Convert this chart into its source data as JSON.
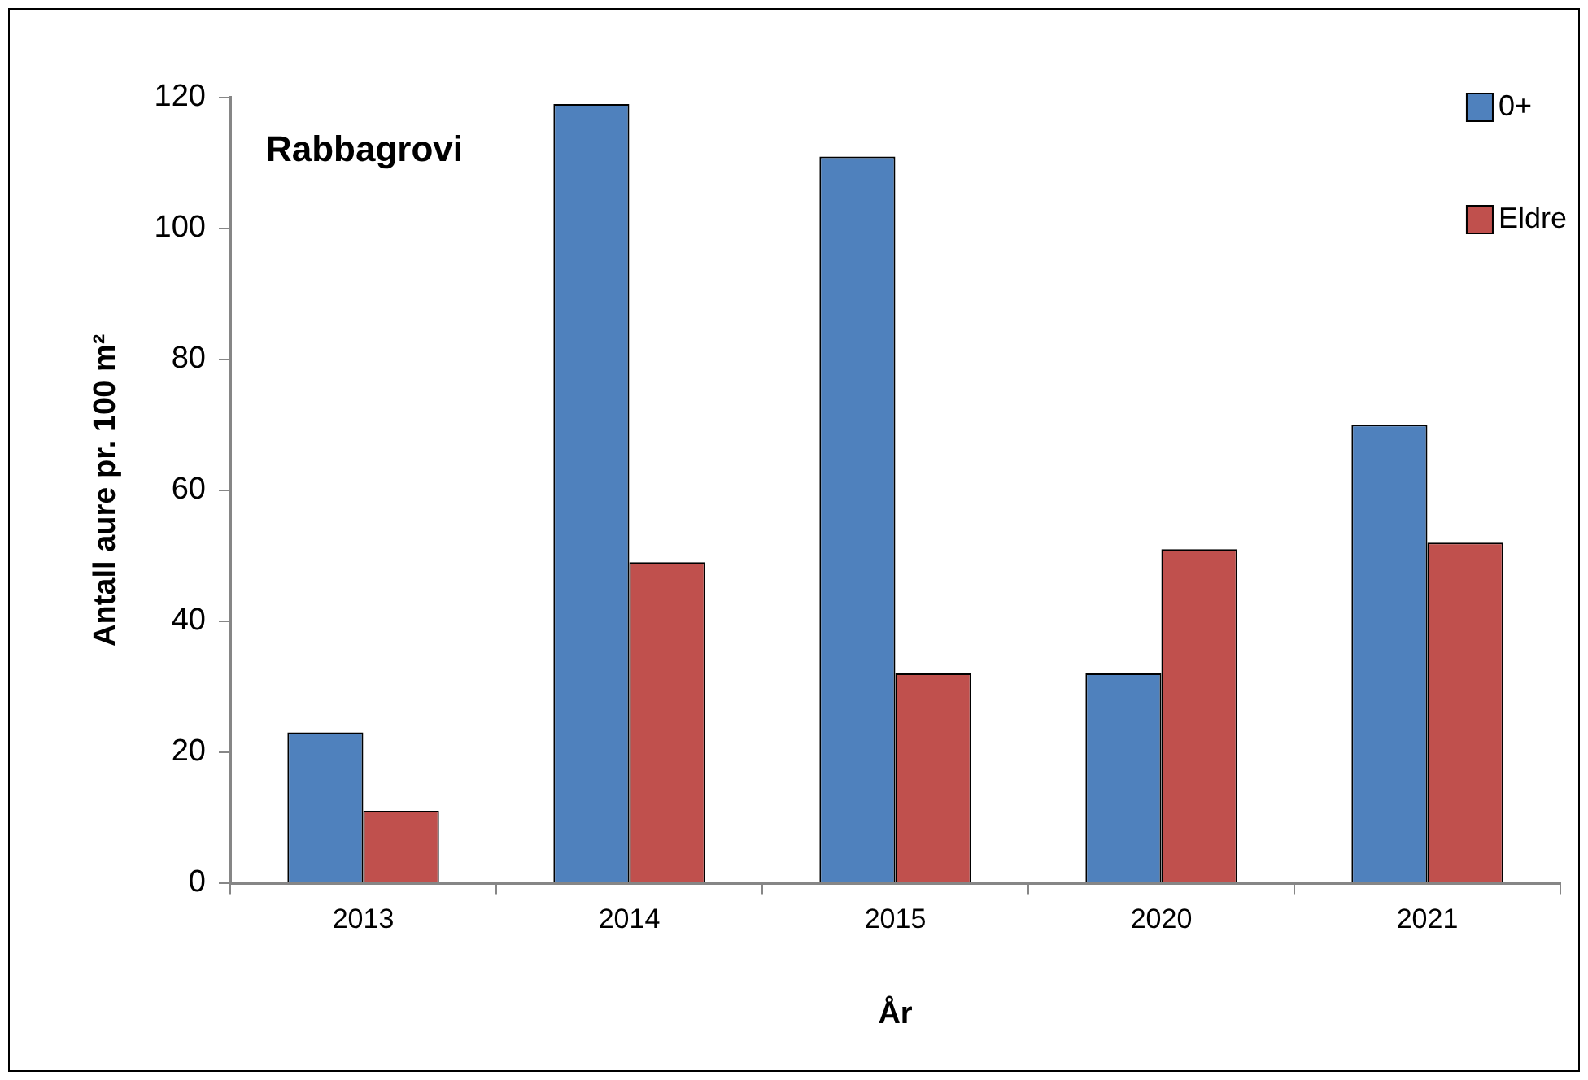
{
  "chart_data": {
    "type": "bar",
    "title": "Rabbagrovi",
    "xlabel": "År",
    "ylabel": "Antall aure pr. 100 m²",
    "categories": [
      "2013",
      "2014",
      "2015",
      "2020",
      "2021"
    ],
    "series": [
      {
        "name": "0+",
        "color": "#4f81bd",
        "values": [
          23,
          119,
          111,
          32,
          70
        ]
      },
      {
        "name": "Eldre",
        "color": "#c0504d",
        "values": [
          11,
          49,
          32,
          51,
          52
        ]
      }
    ],
    "ylim": [
      0,
      120
    ],
    "yticks": [
      0,
      20,
      40,
      60,
      80,
      100,
      120
    ],
    "grid": false,
    "legend": "top right"
  }
}
